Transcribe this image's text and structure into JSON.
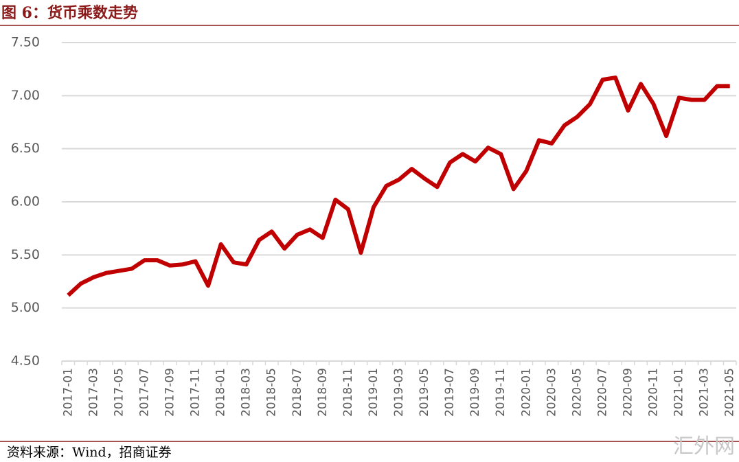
{
  "chart_data": {
    "type": "line",
    "title": "图 6：货币乘数走势",
    "source": "资料来源：Wind，招商证券",
    "watermark": "汇外网",
    "categories": [
      "2017-01",
      null,
      "2017-03",
      null,
      "2017-05",
      null,
      "2017-07",
      null,
      "2017-09",
      null,
      "2017-11",
      null,
      "2018-01",
      null,
      "2018-03",
      null,
      "2018-05",
      null,
      "2018-07",
      null,
      "2018-09",
      null,
      "2018-11",
      null,
      "2019-01",
      null,
      "2019-03",
      null,
      "2019-05",
      null,
      "2019-07",
      null,
      "2019-09",
      null,
      "2019-11",
      null,
      "2020-01",
      null,
      "2020-03",
      null,
      "2020-05",
      null,
      "2020-07",
      null,
      "2020-09",
      null,
      "2020-11",
      null,
      "2021-01",
      null,
      "2021-03",
      null,
      "2021-05"
    ],
    "series": [
      {
        "name": "货币乘数",
        "color": "#c00000",
        "values": [
          5.12,
          5.23,
          5.29,
          5.33,
          5.35,
          5.37,
          5.45,
          5.45,
          5.4,
          5.41,
          5.44,
          5.21,
          5.6,
          5.43,
          5.41,
          5.64,
          5.72,
          5.56,
          5.69,
          5.74,
          5.66,
          6.02,
          5.93,
          5.52,
          5.95,
          6.15,
          6.21,
          6.31,
          6.22,
          6.14,
          6.37,
          6.45,
          6.38,
          6.51,
          6.45,
          6.12,
          6.29,
          6.58,
          6.55,
          6.72,
          6.8,
          6.92,
          7.15,
          7.17,
          6.86,
          7.11,
          6.92,
          6.62,
          6.98,
          6.96,
          6.96,
          7.09,
          7.09
        ]
      }
    ],
    "ylim": [
      4.5,
      7.5
    ],
    "yticks": [
      {
        "value": 4.5,
        "label": "4.50"
      },
      {
        "value": 5,
        "label": "5.00"
      },
      {
        "value": 5.5,
        "label": "5.50"
      },
      {
        "value": 6,
        "label": "6.00"
      },
      {
        "value": 6.5,
        "label": "6.50"
      },
      {
        "value": 7,
        "label": "7.00"
      },
      {
        "value": 7.5,
        "label": "7.50"
      }
    ],
    "grid": true
  }
}
